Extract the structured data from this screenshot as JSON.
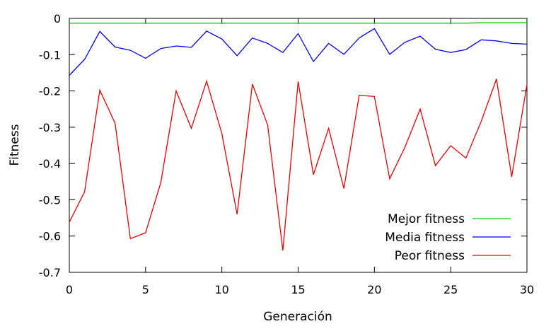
{
  "chart_data": {
    "type": "line",
    "title": "",
    "xlabel": "Generación",
    "ylabel": "Fitness",
    "xlim": [
      0,
      30
    ],
    "ylim": [
      -0.7,
      0
    ],
    "xticks": [
      0,
      5,
      10,
      15,
      20,
      25,
      30
    ],
    "yticks": [
      0,
      -0.1,
      -0.2,
      -0.3,
      -0.4,
      -0.5,
      -0.6,
      -0.7
    ],
    "ytick_labels": [
      "0",
      "-0.1",
      "-0.2",
      "-0.3",
      "-0.4",
      "-0.5",
      "-0.6",
      "-0.7"
    ],
    "grid": false,
    "legend_position": "bottom-right",
    "x": [
      0,
      1,
      2,
      3,
      4,
      5,
      6,
      7,
      8,
      9,
      10,
      11,
      12,
      13,
      14,
      15,
      16,
      17,
      18,
      19,
      20,
      21,
      22,
      23,
      24,
      25,
      26,
      27,
      28,
      29,
      30
    ],
    "series": [
      {
        "name": "Mejor fitness",
        "color": "#00cc00",
        "values": [
          -0.013,
          -0.013,
          -0.013,
          -0.013,
          -0.013,
          -0.013,
          -0.013,
          -0.013,
          -0.013,
          -0.013,
          -0.013,
          -0.013,
          -0.013,
          -0.013,
          -0.013,
          -0.013,
          -0.013,
          -0.013,
          -0.013,
          -0.013,
          -0.013,
          -0.013,
          -0.013,
          -0.013,
          -0.013,
          -0.013,
          -0.013,
          -0.012,
          -0.012,
          -0.012,
          -0.012
        ]
      },
      {
        "name": "Media fitness",
        "color": "#0000ee",
        "values": [
          -0.157,
          -0.113,
          -0.036,
          -0.079,
          -0.088,
          -0.11,
          -0.083,
          -0.076,
          -0.08,
          -0.035,
          -0.057,
          -0.103,
          -0.054,
          -0.069,
          -0.094,
          -0.042,
          -0.119,
          -0.069,
          -0.099,
          -0.054,
          -0.028,
          -0.099,
          -0.066,
          -0.049,
          -0.085,
          -0.094,
          -0.086,
          -0.059,
          -0.062,
          -0.069,
          -0.071
        ]
      },
      {
        "name": "Peor fitness",
        "color": "#ee0000",
        "values": [
          -0.562,
          -0.478,
          -0.198,
          -0.289,
          -0.607,
          -0.591,
          -0.452,
          -0.2,
          -0.303,
          -0.173,
          -0.318,
          -0.54,
          -0.181,
          -0.294,
          -0.64,
          -0.174,
          -0.431,
          -0.303,
          -0.469,
          -0.212,
          -0.215,
          -0.442,
          -0.355,
          -0.25,
          -0.406,
          -0.351,
          -0.385,
          -0.284,
          -0.167,
          -0.437,
          -0.182
        ]
      }
    ]
  }
}
